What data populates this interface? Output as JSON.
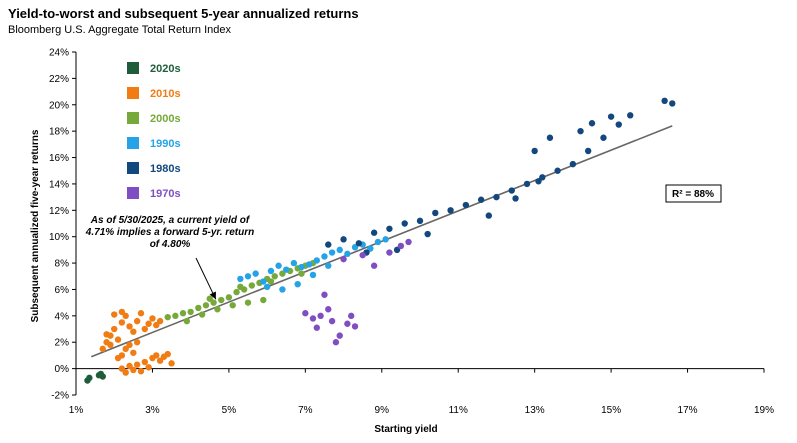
{
  "chart_data": {
    "type": "scatter",
    "title": "Yield-to-worst and subsequent 5-year annualized returns",
    "subtitle": "Bloomberg U.S. Aggregate Total Return Index",
    "xlabel": "Starting yield",
    "ylabel": "Subsequent annualized five-year returns",
    "xlim": [
      1,
      19
    ],
    "ylim": [
      -2,
      24
    ],
    "x_ticks": [
      "1%",
      "3%",
      "5%",
      "7%",
      "9%",
      "11%",
      "13%",
      "15%",
      "17%",
      "19%"
    ],
    "y_ticks": [
      "-2%",
      "0%",
      "2%",
      "4%",
      "6%",
      "8%",
      "10%",
      "12%",
      "14%",
      "16%",
      "18%",
      "20%",
      "22%",
      "24%"
    ],
    "legend_position": "top-left",
    "grid": false,
    "series": [
      {
        "name": "2020s",
        "color": "#1e5c3a",
        "points": [
          [
            1.3,
            -0.9
          ],
          [
            1.35,
            -0.7
          ],
          [
            1.6,
            -0.5
          ],
          [
            1.65,
            -0.4
          ],
          [
            1.7,
            -0.6
          ]
        ]
      },
      {
        "name": "2010s",
        "color": "#f07c13",
        "points": [
          [
            1.7,
            1.5
          ],
          [
            1.8,
            2.0
          ],
          [
            1.9,
            2.5
          ],
          [
            2.0,
            3.0
          ],
          [
            2.1,
            2.2
          ],
          [
            2.2,
            3.5
          ],
          [
            2.3,
            4.0
          ],
          [
            2.4,
            3.2
          ],
          [
            2.5,
            2.8
          ],
          [
            2.6,
            3.6
          ],
          [
            2.7,
            4.2
          ],
          [
            2.8,
            3.0
          ],
          [
            2.9,
            3.4
          ],
          [
            3.0,
            3.8
          ],
          [
            3.1,
            3.3
          ],
          [
            3.2,
            3.6
          ],
          [
            2.2,
            1.0
          ],
          [
            2.3,
            1.5
          ],
          [
            2.4,
            1.8
          ],
          [
            2.5,
            1.2
          ],
          [
            2.6,
            2.0
          ],
          [
            2.1,
            0.8
          ],
          [
            2.2,
            0.0
          ],
          [
            2.3,
            -0.3
          ],
          [
            2.4,
            0.2
          ],
          [
            2.5,
            -0.1
          ],
          [
            2.6,
            0.3
          ],
          [
            2.7,
            -0.2
          ],
          [
            2.8,
            0.5
          ],
          [
            2.9,
            0.1
          ],
          [
            3.0,
            0.8
          ],
          [
            3.1,
            1.0
          ],
          [
            3.2,
            0.6
          ],
          [
            3.3,
            0.9
          ],
          [
            3.4,
            1.1
          ],
          [
            3.5,
            0.4
          ],
          [
            2.0,
            4.1
          ],
          [
            2.2,
            4.3
          ],
          [
            1.8,
            2.6
          ],
          [
            1.9,
            1.8
          ]
        ]
      },
      {
        "name": "2000s",
        "color": "#76a93a",
        "points": [
          [
            3.4,
            3.9
          ],
          [
            3.6,
            4.0
          ],
          [
            3.8,
            4.2
          ],
          [
            4.0,
            4.3
          ],
          [
            4.2,
            4.6
          ],
          [
            4.4,
            4.8
          ],
          [
            4.6,
            5.0
          ],
          [
            4.8,
            5.2
          ],
          [
            5.0,
            5.4
          ],
          [
            5.2,
            5.8
          ],
          [
            5.4,
            6.0
          ],
          [
            5.6,
            6.3
          ],
          [
            5.8,
            6.5
          ],
          [
            6.0,
            6.8
          ],
          [
            6.2,
            7.0
          ],
          [
            6.4,
            7.2
          ],
          [
            6.6,
            7.4
          ],
          [
            6.8,
            7.6
          ],
          [
            7.0,
            7.8
          ],
          [
            7.2,
            8.0
          ],
          [
            4.3,
            4.1
          ],
          [
            4.7,
            4.5
          ],
          [
            5.1,
            4.8
          ],
          [
            5.5,
            5.0
          ],
          [
            5.9,
            5.2
          ],
          [
            3.9,
            3.6
          ],
          [
            4.5,
            5.3
          ],
          [
            5.3,
            6.2
          ],
          [
            6.1,
            6.6
          ],
          [
            6.9,
            7.2
          ]
        ]
      },
      {
        "name": "1990s",
        "color": "#26a3e6",
        "points": [
          [
            5.3,
            6.8
          ],
          [
            5.5,
            7.0
          ],
          [
            5.7,
            7.2
          ],
          [
            5.9,
            6.6
          ],
          [
            6.1,
            7.4
          ],
          [
            6.3,
            7.8
          ],
          [
            6.5,
            7.5
          ],
          [
            6.7,
            8.0
          ],
          [
            6.9,
            7.7
          ],
          [
            7.1,
            7.9
          ],
          [
            7.3,
            8.2
          ],
          [
            7.5,
            8.5
          ],
          [
            7.7,
            8.8
          ],
          [
            7.9,
            9.0
          ],
          [
            8.1,
            8.7
          ],
          [
            8.3,
            9.2
          ],
          [
            8.5,
            9.4
          ],
          [
            8.7,
            9.1
          ],
          [
            8.9,
            9.6
          ],
          [
            9.1,
            9.8
          ],
          [
            6.0,
            6.2
          ],
          [
            6.4,
            6.0
          ],
          [
            6.8,
            6.4
          ],
          [
            7.2,
            7.1
          ],
          [
            7.6,
            7.8
          ]
        ]
      },
      {
        "name": "1980s",
        "color": "#13487e",
        "points": [
          [
            7.6,
            9.4
          ],
          [
            8.0,
            9.8
          ],
          [
            8.4,
            9.5
          ],
          [
            8.8,
            10.3
          ],
          [
            9.2,
            10.6
          ],
          [
            9.6,
            11.0
          ],
          [
            10.0,
            11.2
          ],
          [
            10.4,
            11.8
          ],
          [
            10.8,
            12.0
          ],
          [
            11.2,
            12.4
          ],
          [
            11.6,
            12.8
          ],
          [
            12.0,
            13.0
          ],
          [
            12.4,
            13.5
          ],
          [
            12.8,
            14.0
          ],
          [
            13.2,
            14.5
          ],
          [
            13.6,
            15.0
          ],
          [
            14.0,
            15.5
          ],
          [
            14.4,
            16.5
          ],
          [
            14.8,
            17.5
          ],
          [
            15.2,
            18.5
          ],
          [
            15.5,
            19.2
          ],
          [
            16.4,
            20.3
          ],
          [
            16.6,
            20.1
          ],
          [
            13.0,
            16.5
          ],
          [
            13.4,
            17.5
          ],
          [
            14.2,
            18.0
          ],
          [
            12.5,
            12.9
          ],
          [
            11.8,
            11.6
          ],
          [
            10.2,
            10.2
          ],
          [
            9.4,
            9.0
          ],
          [
            8.6,
            8.8
          ],
          [
            13.1,
            14.2
          ],
          [
            14.5,
            18.6
          ],
          [
            15.0,
            19.1
          ]
        ]
      },
      {
        "name": "1970s",
        "color": "#7f4fc2",
        "points": [
          [
            7.0,
            4.2
          ],
          [
            7.2,
            3.8
          ],
          [
            7.3,
            3.1
          ],
          [
            7.5,
            5.6
          ],
          [
            7.6,
            4.5
          ],
          [
            7.8,
            2.0
          ],
          [
            7.9,
            2.5
          ],
          [
            8.1,
            3.4
          ],
          [
            8.2,
            4.0
          ],
          [
            8.3,
            3.2
          ],
          [
            8.5,
            8.6
          ],
          [
            8.8,
            7.8
          ],
          [
            9.2,
            8.8
          ],
          [
            9.5,
            9.3
          ],
          [
            9.7,
            9.6
          ],
          [
            8.0,
            8.3
          ],
          [
            7.4,
            4.0
          ],
          [
            7.7,
            3.6
          ]
        ]
      }
    ],
    "trendline": {
      "x": [
        1.4,
        16.6
      ],
      "y": [
        0.9,
        18.4
      ]
    },
    "r_squared_label": "R² = 88%",
    "annotation": {
      "lines": [
        "As of 5/30/2025, a current yield of",
        "4.71% implies a forward 5-yr. return",
        "of 4.80%"
      ],
      "target": [
        4.71,
        4.8
      ]
    }
  }
}
